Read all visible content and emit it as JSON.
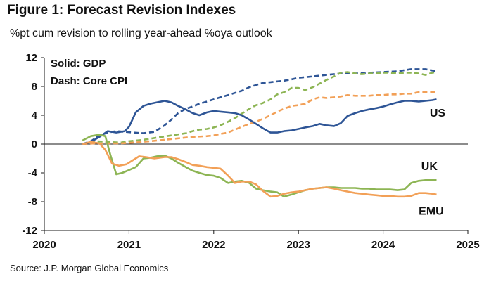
{
  "title": "Figure 1: Forecast Revision Indexes",
  "subtitle": "%pt cum revision to rolling year-ahead %oya outlook",
  "source": "Source: J.P. Morgan Global Economics",
  "colors": {
    "us": "#2E5596",
    "uk": "#8DB554",
    "emu": "#F2A057",
    "axis": "#1a1a1a"
  },
  "chart_data": {
    "type": "line",
    "title": "Figure 1: Forecast Revision Indexes",
    "ylabel": "%pt cum revision to rolling year-ahead %oya outlook",
    "xlabel": "",
    "xlim": [
      2020,
      2025
    ],
    "ylim": [
      -12,
      12
    ],
    "x_ticks": [
      2020,
      2021,
      2022,
      2023,
      2024,
      2025
    ],
    "y_ticks": [
      12,
      8,
      4,
      0,
      -4,
      -8,
      -12
    ],
    "x_tick_labels": [
      "2020",
      "2021",
      "2022",
      "2023",
      "2024",
      "2025"
    ],
    "y_tick_labels": [
      "12",
      "8",
      "4",
      "0",
      "-4",
      "-8",
      "-12"
    ],
    "legend": [
      "Solid: GDP",
      "Dash: Core CPI"
    ],
    "legend_position": "top-left",
    "annotations": [
      {
        "text": "US",
        "x": 2024.55,
        "y": 3.8
      },
      {
        "text": "UK",
        "x": 2024.45,
        "y": -3.6
      },
      {
        "text": "EMU",
        "x": 2024.42,
        "y": -9.8
      }
    ],
    "series": [
      {
        "name": "US GDP",
        "style": "solid",
        "color": "#2E5596",
        "points": [
          [
            2020.45,
            0
          ],
          [
            2020.55,
            0.3
          ],
          [
            2020.65,
            1.0
          ],
          [
            2020.75,
            1.8
          ],
          [
            2020.85,
            1.6
          ],
          [
            2020.95,
            1.8
          ],
          [
            2021.0,
            2.4
          ],
          [
            2021.08,
            4.4
          ],
          [
            2021.17,
            5.3
          ],
          [
            2021.25,
            5.6
          ],
          [
            2021.33,
            5.8
          ],
          [
            2021.42,
            6.0
          ],
          [
            2021.5,
            5.8
          ],
          [
            2021.58,
            5.3
          ],
          [
            2021.67,
            4.8
          ],
          [
            2021.75,
            4.3
          ],
          [
            2021.83,
            4.0
          ],
          [
            2021.92,
            4.4
          ],
          [
            2022.0,
            4.6
          ],
          [
            2022.08,
            4.5
          ],
          [
            2022.17,
            4.4
          ],
          [
            2022.25,
            4.3
          ],
          [
            2022.33,
            4.0
          ],
          [
            2022.42,
            3.4
          ],
          [
            2022.5,
            2.8
          ],
          [
            2022.58,
            2.2
          ],
          [
            2022.67,
            1.6
          ],
          [
            2022.75,
            1.6
          ],
          [
            2022.83,
            1.8
          ],
          [
            2022.92,
            1.9
          ],
          [
            2023.0,
            2.1
          ],
          [
            2023.08,
            2.3
          ],
          [
            2023.17,
            2.5
          ],
          [
            2023.25,
            2.8
          ],
          [
            2023.33,
            2.6
          ],
          [
            2023.42,
            2.5
          ],
          [
            2023.5,
            2.9
          ],
          [
            2023.58,
            3.9
          ],
          [
            2023.67,
            4.3
          ],
          [
            2023.75,
            4.6
          ],
          [
            2023.83,
            4.8
          ],
          [
            2023.92,
            5.0
          ],
          [
            2024.0,
            5.2
          ],
          [
            2024.08,
            5.5
          ],
          [
            2024.17,
            5.8
          ],
          [
            2024.25,
            6.0
          ],
          [
            2024.33,
            6.0
          ],
          [
            2024.42,
            5.9
          ],
          [
            2024.5,
            6.0
          ],
          [
            2024.58,
            6.1
          ],
          [
            2024.63,
            6.2
          ]
        ]
      },
      {
        "name": "US Core CPI",
        "style": "dashed",
        "color": "#2E5596",
        "points": [
          [
            2020.45,
            0
          ],
          [
            2020.55,
            0.4
          ],
          [
            2020.65,
            1.2
          ],
          [
            2020.75,
            1.6
          ],
          [
            2020.85,
            1.8
          ],
          [
            2020.95,
            1.7
          ],
          [
            2021.05,
            1.6
          ],
          [
            2021.17,
            1.5
          ],
          [
            2021.3,
            1.7
          ],
          [
            2021.42,
            2.6
          ],
          [
            2021.5,
            3.4
          ],
          [
            2021.58,
            4.3
          ],
          [
            2021.67,
            4.9
          ],
          [
            2021.75,
            5.2
          ],
          [
            2021.83,
            5.6
          ],
          [
            2021.92,
            5.9
          ],
          [
            2022.0,
            6.2
          ],
          [
            2022.08,
            6.5
          ],
          [
            2022.17,
            6.8
          ],
          [
            2022.25,
            7.1
          ],
          [
            2022.33,
            7.4
          ],
          [
            2022.42,
            7.9
          ],
          [
            2022.5,
            8.2
          ],
          [
            2022.58,
            8.5
          ],
          [
            2022.67,
            8.6
          ],
          [
            2022.75,
            8.7
          ],
          [
            2022.83,
            8.8
          ],
          [
            2022.92,
            9.0
          ],
          [
            2023.0,
            9.2
          ],
          [
            2023.17,
            9.4
          ],
          [
            2023.33,
            9.6
          ],
          [
            2023.5,
            9.8
          ],
          [
            2023.67,
            9.8
          ],
          [
            2023.83,
            9.9
          ],
          [
            2024.0,
            10.0
          ],
          [
            2024.17,
            10.1
          ],
          [
            2024.33,
            10.4
          ],
          [
            2024.5,
            10.4
          ],
          [
            2024.63,
            10.1
          ]
        ]
      },
      {
        "name": "UK GDP",
        "style": "solid",
        "color": "#8DB554",
        "points": [
          [
            2020.45,
            0.5
          ],
          [
            2020.55,
            1.1
          ],
          [
            2020.65,
            1.3
          ],
          [
            2020.72,
            1.1
          ],
          [
            2020.78,
            -1.5
          ],
          [
            2020.85,
            -4.2
          ],
          [
            2020.92,
            -4.0
          ],
          [
            2021.0,
            -3.6
          ],
          [
            2021.08,
            -3.2
          ],
          [
            2021.17,
            -2.0
          ],
          [
            2021.25,
            -1.9
          ],
          [
            2021.33,
            -1.7
          ],
          [
            2021.42,
            -1.6
          ],
          [
            2021.5,
            -2.0
          ],
          [
            2021.58,
            -2.6
          ],
          [
            2021.67,
            -3.2
          ],
          [
            2021.75,
            -3.7
          ],
          [
            2021.83,
            -4.0
          ],
          [
            2021.92,
            -4.3
          ],
          [
            2022.0,
            -4.4
          ],
          [
            2022.08,
            -4.7
          ],
          [
            2022.17,
            -5.4
          ],
          [
            2022.25,
            -5.2
          ],
          [
            2022.33,
            -5.1
          ],
          [
            2022.42,
            -5.4
          ],
          [
            2022.5,
            -6.2
          ],
          [
            2022.58,
            -6.4
          ],
          [
            2022.67,
            -6.6
          ],
          [
            2022.75,
            -6.7
          ],
          [
            2022.83,
            -7.3
          ],
          [
            2022.92,
            -7.0
          ],
          [
            2023.0,
            -6.7
          ],
          [
            2023.08,
            -6.4
          ],
          [
            2023.17,
            -6.2
          ],
          [
            2023.25,
            -6.1
          ],
          [
            2023.33,
            -6.0
          ],
          [
            2023.42,
            -6.0
          ],
          [
            2023.5,
            -6.1
          ],
          [
            2023.58,
            -6.1
          ],
          [
            2023.67,
            -6.1
          ],
          [
            2023.75,
            -6.2
          ],
          [
            2023.83,
            -6.2
          ],
          [
            2023.92,
            -6.3
          ],
          [
            2024.0,
            -6.3
          ],
          [
            2024.08,
            -6.3
          ],
          [
            2024.17,
            -6.4
          ],
          [
            2024.25,
            -6.3
          ],
          [
            2024.33,
            -5.4
          ],
          [
            2024.42,
            -5.1
          ],
          [
            2024.5,
            -5.0
          ],
          [
            2024.58,
            -5.0
          ],
          [
            2024.63,
            -5.0
          ]
        ]
      },
      {
        "name": "UK Core CPI",
        "style": "dashed",
        "color": "#8DB554",
        "points": [
          [
            2020.45,
            0
          ],
          [
            2020.6,
            0.4
          ],
          [
            2020.75,
            0.3
          ],
          [
            2020.9,
            0.2
          ],
          [
            2021.0,
            0.4
          ],
          [
            2021.17,
            0.6
          ],
          [
            2021.33,
            0.9
          ],
          [
            2021.5,
            1.2
          ],
          [
            2021.67,
            1.5
          ],
          [
            2021.75,
            1.8
          ],
          [
            2021.83,
            2.0
          ],
          [
            2021.92,
            2.1
          ],
          [
            2022.0,
            2.3
          ],
          [
            2022.08,
            2.6
          ],
          [
            2022.17,
            3.1
          ],
          [
            2022.25,
            3.6
          ],
          [
            2022.33,
            4.2
          ],
          [
            2022.42,
            4.9
          ],
          [
            2022.5,
            5.4
          ],
          [
            2022.58,
            5.7
          ],
          [
            2022.67,
            6.2
          ],
          [
            2022.75,
            6.9
          ],
          [
            2022.83,
            7.2
          ],
          [
            2022.92,
            7.8
          ],
          [
            2023.0,
            7.8
          ],
          [
            2023.08,
            7.5
          ],
          [
            2023.17,
            7.9
          ],
          [
            2023.25,
            8.4
          ],
          [
            2023.33,
            8.9
          ],
          [
            2023.42,
            9.4
          ],
          [
            2023.5,
            9.9
          ],
          [
            2023.58,
            10.0
          ],
          [
            2023.67,
            9.8
          ],
          [
            2023.75,
            9.7
          ],
          [
            2023.83,
            9.8
          ],
          [
            2023.92,
            9.8
          ],
          [
            2024.0,
            9.9
          ],
          [
            2024.08,
            9.9
          ],
          [
            2024.17,
            9.8
          ],
          [
            2024.25,
            9.9
          ],
          [
            2024.33,
            9.9
          ],
          [
            2024.42,
            9.8
          ],
          [
            2024.5,
            9.6
          ],
          [
            2024.58,
            9.9
          ],
          [
            2024.63,
            10.0
          ]
        ]
      },
      {
        "name": "EMU GDP",
        "style": "solid",
        "color": "#F2A057",
        "points": [
          [
            2020.45,
            0
          ],
          [
            2020.55,
            0.3
          ],
          [
            2020.65,
            0.1
          ],
          [
            2020.72,
            -0.8
          ],
          [
            2020.8,
            -2.7
          ],
          [
            2020.88,
            -3.0
          ],
          [
            2020.97,
            -2.8
          ],
          [
            2021.05,
            -2.2
          ],
          [
            2021.12,
            -1.7
          ],
          [
            2021.2,
            -1.8
          ],
          [
            2021.3,
            -2.0
          ],
          [
            2021.42,
            -1.8
          ],
          [
            2021.5,
            -1.8
          ],
          [
            2021.58,
            -2.1
          ],
          [
            2021.67,
            -2.5
          ],
          [
            2021.75,
            -2.9
          ],
          [
            2021.83,
            -3.0
          ],
          [
            2021.92,
            -3.2
          ],
          [
            2022.0,
            -3.3
          ],
          [
            2022.08,
            -3.4
          ],
          [
            2022.17,
            -4.4
          ],
          [
            2022.25,
            -5.4
          ],
          [
            2022.33,
            -5.2
          ],
          [
            2022.42,
            -5.2
          ],
          [
            2022.5,
            -5.6
          ],
          [
            2022.58,
            -6.5
          ],
          [
            2022.67,
            -7.3
          ],
          [
            2022.75,
            -7.2
          ],
          [
            2022.83,
            -6.9
          ],
          [
            2022.92,
            -6.7
          ],
          [
            2023.0,
            -6.6
          ],
          [
            2023.08,
            -6.4
          ],
          [
            2023.17,
            -6.2
          ],
          [
            2023.25,
            -6.1
          ],
          [
            2023.33,
            -6.0
          ],
          [
            2023.42,
            -6.2
          ],
          [
            2023.5,
            -6.4
          ],
          [
            2023.58,
            -6.6
          ],
          [
            2023.67,
            -6.8
          ],
          [
            2023.75,
            -6.9
          ],
          [
            2023.83,
            -7.0
          ],
          [
            2023.92,
            -7.1
          ],
          [
            2024.0,
            -7.2
          ],
          [
            2024.08,
            -7.2
          ],
          [
            2024.17,
            -7.3
          ],
          [
            2024.25,
            -7.3
          ],
          [
            2024.33,
            -7.2
          ],
          [
            2024.42,
            -6.8
          ],
          [
            2024.5,
            -6.8
          ],
          [
            2024.58,
            -6.9
          ],
          [
            2024.63,
            -7.0
          ]
        ]
      },
      {
        "name": "EMU Core CPI",
        "style": "dashed",
        "color": "#F2A057",
        "points": [
          [
            2020.45,
            0
          ],
          [
            2020.6,
            0.1
          ],
          [
            2020.75,
            0.1
          ],
          [
            2020.9,
            0.1
          ],
          [
            2021.05,
            0.2
          ],
          [
            2021.25,
            0.4
          ],
          [
            2021.42,
            0.6
          ],
          [
            2021.58,
            0.8
          ],
          [
            2021.75,
            1.0
          ],
          [
            2021.92,
            1.1
          ],
          [
            2022.0,
            1.2
          ],
          [
            2022.08,
            1.4
          ],
          [
            2022.17,
            1.6
          ],
          [
            2022.25,
            2.0
          ],
          [
            2022.33,
            2.4
          ],
          [
            2022.42,
            2.8
          ],
          [
            2022.5,
            3.1
          ],
          [
            2022.58,
            3.5
          ],
          [
            2022.67,
            4.0
          ],
          [
            2022.75,
            4.5
          ],
          [
            2022.83,
            4.9
          ],
          [
            2022.92,
            5.3
          ],
          [
            2023.0,
            5.4
          ],
          [
            2023.08,
            5.6
          ],
          [
            2023.17,
            6.2
          ],
          [
            2023.25,
            6.5
          ],
          [
            2023.33,
            6.4
          ],
          [
            2023.42,
            6.5
          ],
          [
            2023.5,
            6.6
          ],
          [
            2023.58,
            6.8
          ],
          [
            2023.67,
            6.7
          ],
          [
            2023.75,
            6.7
          ],
          [
            2023.83,
            6.7
          ],
          [
            2023.92,
            6.8
          ],
          [
            2024.0,
            6.8
          ],
          [
            2024.08,
            6.9
          ],
          [
            2024.17,
            6.9
          ],
          [
            2024.25,
            7.0
          ],
          [
            2024.33,
            7.0
          ],
          [
            2024.42,
            7.2
          ],
          [
            2024.5,
            7.2
          ],
          [
            2024.58,
            7.2
          ],
          [
            2024.63,
            7.2
          ]
        ]
      }
    ]
  }
}
